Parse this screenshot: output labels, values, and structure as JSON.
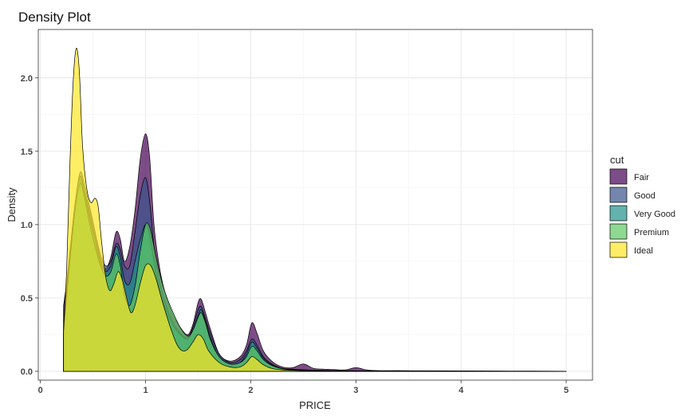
{
  "chart_data": {
    "type": "area",
    "title": "Density Plot",
    "xlabel": "PRICE",
    "ylabel": "Density",
    "xlim": [
      -0.02,
      5.25
    ],
    "ylim": [
      -0.06,
      2.33
    ],
    "x_ticks": [
      0,
      1,
      2,
      3,
      4,
      5
    ],
    "y_ticks": [
      0.0,
      0.5,
      1.0,
      1.5,
      2.0
    ],
    "x_tick_labels": [
      "0",
      "1",
      "2",
      "3",
      "4",
      "5"
    ],
    "y_tick_labels": [
      "0.0",
      "0.5",
      "1.0",
      "1.5",
      "2.0"
    ],
    "grid": true,
    "legend": {
      "title": "cut",
      "position": "right"
    },
    "series": [
      {
        "name": "Fair",
        "color": "#440154",
        "x": [
          0.22,
          0.25,
          0.3,
          0.34,
          0.38,
          0.42,
          0.47,
          0.52,
          0.57,
          0.62,
          0.67,
          0.72,
          0.76,
          0.8,
          0.85,
          0.9,
          0.95,
          1.0,
          1.04,
          1.08,
          1.13,
          1.18,
          1.25,
          1.33,
          1.4,
          1.45,
          1.5,
          1.53,
          1.57,
          1.62,
          1.7,
          1.8,
          1.9,
          1.96,
          2.01,
          2.06,
          2.12,
          2.2,
          2.3,
          2.4,
          2.5,
          2.6,
          2.7,
          2.8,
          2.9,
          3.0,
          3.1,
          3.2,
          3.4,
          3.6,
          4.0,
          4.5,
          5.0
        ],
        "y": [
          0.45,
          0.6,
          0.85,
          1.05,
          1.3,
          1.22,
          1.1,
          0.95,
          0.78,
          0.7,
          0.78,
          0.95,
          0.9,
          0.75,
          0.85,
          1.1,
          1.45,
          1.62,
          1.45,
          1.0,
          0.72,
          0.55,
          0.4,
          0.3,
          0.25,
          0.32,
          0.47,
          0.49,
          0.4,
          0.28,
          0.12,
          0.07,
          0.1,
          0.18,
          0.33,
          0.26,
          0.14,
          0.07,
          0.03,
          0.025,
          0.05,
          0.02,
          0.015,
          0.012,
          0.01,
          0.025,
          0.01,
          0.005,
          0.005,
          0.004,
          0.003,
          0.002,
          0.001
        ]
      },
      {
        "name": "Good",
        "color": "#3b528b",
        "x": [
          0.22,
          0.25,
          0.3,
          0.34,
          0.38,
          0.42,
          0.47,
          0.52,
          0.57,
          0.62,
          0.67,
          0.72,
          0.76,
          0.8,
          0.85,
          0.9,
          0.95,
          1.0,
          1.04,
          1.08,
          1.13,
          1.18,
          1.25,
          1.33,
          1.4,
          1.45,
          1.5,
          1.53,
          1.57,
          1.62,
          1.7,
          1.8,
          1.9,
          1.96,
          2.01,
          2.06,
          2.12,
          2.2,
          2.3,
          2.4,
          2.6,
          2.8,
          3.0,
          3.5,
          4.0,
          5.0
        ],
        "y": [
          0.35,
          0.6,
          0.95,
          1.2,
          1.36,
          1.27,
          1.12,
          0.95,
          0.8,
          0.72,
          0.75,
          0.87,
          0.83,
          0.72,
          0.72,
          0.95,
          1.2,
          1.32,
          1.15,
          0.85,
          0.62,
          0.48,
          0.35,
          0.26,
          0.23,
          0.3,
          0.42,
          0.44,
          0.36,
          0.25,
          0.12,
          0.06,
          0.08,
          0.14,
          0.22,
          0.18,
          0.1,
          0.05,
          0.02,
          0.015,
          0.008,
          0.005,
          0.004,
          0.002,
          0.001,
          0.0
        ]
      },
      {
        "name": "Very Good",
        "color": "#21918c",
        "x": [
          0.22,
          0.25,
          0.3,
          0.34,
          0.38,
          0.42,
          0.47,
          0.52,
          0.57,
          0.62,
          0.67,
          0.72,
          0.76,
          0.8,
          0.85,
          0.9,
          0.95,
          1.0,
          1.04,
          1.08,
          1.13,
          1.18,
          1.25,
          1.33,
          1.4,
          1.45,
          1.5,
          1.53,
          1.57,
          1.62,
          1.7,
          1.8,
          1.9,
          1.96,
          2.01,
          2.06,
          2.12,
          2.2,
          2.3,
          2.4,
          2.6,
          2.8,
          3.0,
          3.5,
          4.0,
          5.0
        ],
        "y": [
          0.3,
          0.55,
          0.95,
          1.2,
          1.33,
          1.22,
          1.05,
          0.9,
          0.75,
          0.68,
          0.72,
          0.85,
          0.78,
          0.62,
          0.6,
          0.75,
          0.9,
          1.0,
          0.92,
          0.75,
          0.56,
          0.44,
          0.33,
          0.25,
          0.22,
          0.28,
          0.38,
          0.42,
          0.34,
          0.22,
          0.1,
          0.05,
          0.06,
          0.12,
          0.2,
          0.16,
          0.09,
          0.045,
          0.02,
          0.012,
          0.006,
          0.004,
          0.003,
          0.002,
          0.001,
          0.0
        ]
      },
      {
        "name": "Premium",
        "color": "#5ec962",
        "x": [
          0.22,
          0.25,
          0.3,
          0.34,
          0.38,
          0.42,
          0.47,
          0.52,
          0.57,
          0.62,
          0.67,
          0.72,
          0.76,
          0.8,
          0.85,
          0.9,
          0.95,
          1.0,
          1.04,
          1.08,
          1.13,
          1.18,
          1.25,
          1.33,
          1.4,
          1.45,
          1.5,
          1.53,
          1.57,
          1.62,
          1.7,
          1.8,
          1.9,
          1.96,
          2.01,
          2.06,
          2.12,
          2.2,
          2.3,
          2.4,
          2.6,
          2.8,
          3.0,
          3.5,
          4.0,
          5.0
        ],
        "y": [
          0.25,
          0.5,
          0.9,
          1.15,
          1.28,
          1.18,
          1.0,
          0.85,
          0.72,
          0.65,
          0.68,
          0.8,
          0.72,
          0.52,
          0.45,
          0.58,
          0.82,
          1.0,
          0.98,
          0.85,
          0.68,
          0.55,
          0.42,
          0.3,
          0.24,
          0.28,
          0.37,
          0.4,
          0.33,
          0.21,
          0.1,
          0.05,
          0.06,
          0.1,
          0.17,
          0.14,
          0.08,
          0.04,
          0.018,
          0.01,
          0.005,
          0.003,
          0.002,
          0.001,
          0.0,
          0.0
        ]
      },
      {
        "name": "Ideal",
        "color": "#fde725",
        "x": [
          0.22,
          0.25,
          0.28,
          0.31,
          0.34,
          0.37,
          0.4,
          0.44,
          0.48,
          0.52,
          0.55,
          0.58,
          0.62,
          0.66,
          0.7,
          0.74,
          0.78,
          0.82,
          0.86,
          0.9,
          0.95,
          1.0,
          1.05,
          1.1,
          1.15,
          1.2,
          1.25,
          1.3,
          1.35,
          1.4,
          1.45,
          1.5,
          1.55,
          1.6,
          1.7,
          1.8,
          1.9,
          1.96,
          2.01,
          2.06,
          2.12,
          2.2,
          2.3,
          2.4,
          2.6,
          2.8,
          3.0,
          3.5,
          4.0,
          5.0
        ],
        "y": [
          0.27,
          0.7,
          1.4,
          1.95,
          2.2,
          2.05,
          1.55,
          1.25,
          1.15,
          1.18,
          1.12,
          0.9,
          0.65,
          0.55,
          0.6,
          0.68,
          0.62,
          0.5,
          0.4,
          0.45,
          0.6,
          0.72,
          0.72,
          0.63,
          0.5,
          0.38,
          0.27,
          0.18,
          0.14,
          0.15,
          0.2,
          0.25,
          0.22,
          0.14,
          0.06,
          0.03,
          0.03,
          0.06,
          0.1,
          0.08,
          0.045,
          0.02,
          0.01,
          0.006,
          0.003,
          0.002,
          0.001,
          0.0,
          0.0,
          0.0
        ]
      }
    ]
  }
}
